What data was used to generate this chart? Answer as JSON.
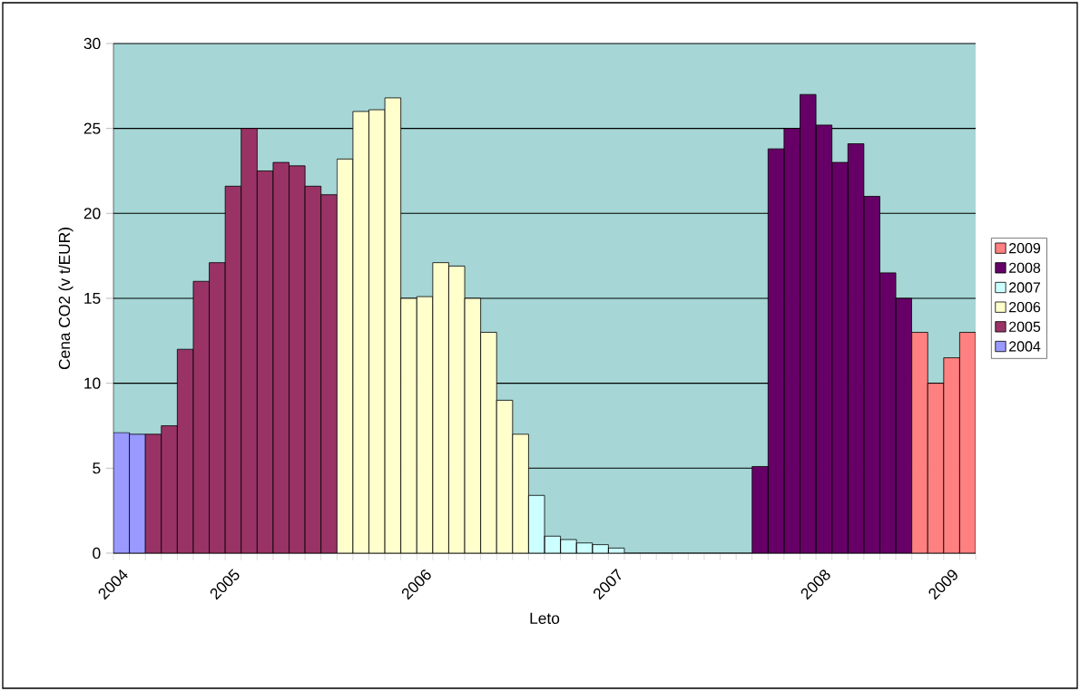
{
  "chart_data": {
    "type": "bar",
    "xlabel": "Leto",
    "ylabel": "Cena CO2 (v t/EUR)",
    "categories": [
      "2004",
      null,
      null,
      null,
      null,
      null,
      null,
      "2005",
      null,
      null,
      null,
      null,
      null,
      null,
      null,
      null,
      null,
      null,
      null,
      "2006",
      null,
      null,
      null,
      null,
      null,
      null,
      null,
      null,
      null,
      null,
      null,
      "2007",
      null,
      null,
      null,
      null,
      null,
      null,
      null,
      null,
      null,
      null,
      null,
      null,
      "2008",
      null,
      null,
      null,
      null,
      null,
      null,
      null,
      "2009",
      null
    ],
    "series": [
      {
        "name": "2004",
        "color": "#9999ff",
        "values": [
          7.1,
          7.0,
          null,
          null,
          null,
          null,
          null,
          null,
          null,
          null,
          null,
          null,
          null,
          null,
          null,
          null,
          null,
          null,
          null,
          null,
          null,
          null,
          null,
          null,
          null,
          null,
          null,
          null,
          null,
          null,
          null,
          null,
          null,
          null,
          null,
          null,
          null,
          null,
          null,
          null,
          null,
          null,
          null,
          null,
          null,
          null,
          null,
          null,
          null,
          null,
          null,
          null,
          null,
          null
        ]
      },
      {
        "name": "2005",
        "color": "#993366",
        "values": [
          null,
          null,
          7.0,
          7.5,
          12.0,
          16.0,
          17.1,
          21.6,
          25.0,
          22.5,
          23.0,
          22.8,
          21.6,
          21.1,
          null,
          null,
          null,
          null,
          null,
          null,
          null,
          null,
          null,
          null,
          null,
          null,
          null,
          null,
          null,
          null,
          null,
          null,
          null,
          null,
          null,
          null,
          null,
          null,
          null,
          null,
          null,
          null,
          null,
          null,
          null,
          null,
          null,
          null,
          null,
          null,
          null,
          null,
          null,
          null
        ]
      },
      {
        "name": "2006",
        "color": "#ffffcc",
        "values": [
          null,
          null,
          null,
          null,
          null,
          null,
          null,
          null,
          null,
          null,
          null,
          null,
          null,
          null,
          23.2,
          26.0,
          26.1,
          26.8,
          15.0,
          15.1,
          17.1,
          16.9,
          15.0,
          13.0,
          9.0,
          7.0,
          null,
          null,
          null,
          null,
          null,
          null,
          null,
          null,
          null,
          null,
          null,
          null,
          null,
          null,
          null,
          null,
          null,
          null,
          null,
          null,
          null,
          null,
          null,
          null,
          null,
          null,
          null,
          null
        ]
      },
      {
        "name": "2007",
        "color": "#ccffff",
        "values": [
          null,
          null,
          null,
          null,
          null,
          null,
          null,
          null,
          null,
          null,
          null,
          null,
          null,
          null,
          null,
          null,
          null,
          null,
          null,
          null,
          null,
          null,
          null,
          null,
          null,
          null,
          3.4,
          1.0,
          0.8,
          0.6,
          0.5,
          0.3,
          null,
          null,
          null,
          null,
          null,
          null,
          null,
          null,
          null,
          null,
          null,
          null,
          null,
          null,
          null,
          null,
          null,
          null,
          null,
          null,
          null,
          null
        ]
      },
      {
        "name": "2008",
        "color": "#660066",
        "values": [
          null,
          null,
          null,
          null,
          null,
          null,
          null,
          null,
          null,
          null,
          null,
          null,
          null,
          null,
          null,
          null,
          null,
          null,
          null,
          null,
          null,
          null,
          null,
          null,
          null,
          null,
          null,
          null,
          null,
          null,
          null,
          null,
          null,
          null,
          null,
          null,
          null,
          null,
          null,
          null,
          5.1,
          23.8,
          25.0,
          27.0,
          25.2,
          23.0,
          24.1,
          21.0,
          16.5,
          15.0,
          null,
          null,
          null,
          null
        ]
      },
      {
        "name": "2009",
        "color": "#ff8080",
        "values": [
          null,
          null,
          null,
          null,
          null,
          null,
          null,
          null,
          null,
          null,
          null,
          null,
          null,
          null,
          null,
          null,
          null,
          null,
          null,
          null,
          null,
          null,
          null,
          null,
          null,
          null,
          null,
          null,
          null,
          null,
          null,
          null,
          null,
          null,
          null,
          null,
          null,
          null,
          null,
          null,
          null,
          null,
          null,
          null,
          null,
          null,
          null,
          null,
          null,
          null,
          13.0,
          10.0,
          11.5,
          13.0
        ]
      }
    ],
    "ylim": [
      0,
      30
    ],
    "yticks": [
      0,
      5,
      10,
      15,
      20,
      25,
      30
    ],
    "grid": "y",
    "legend": "right"
  }
}
